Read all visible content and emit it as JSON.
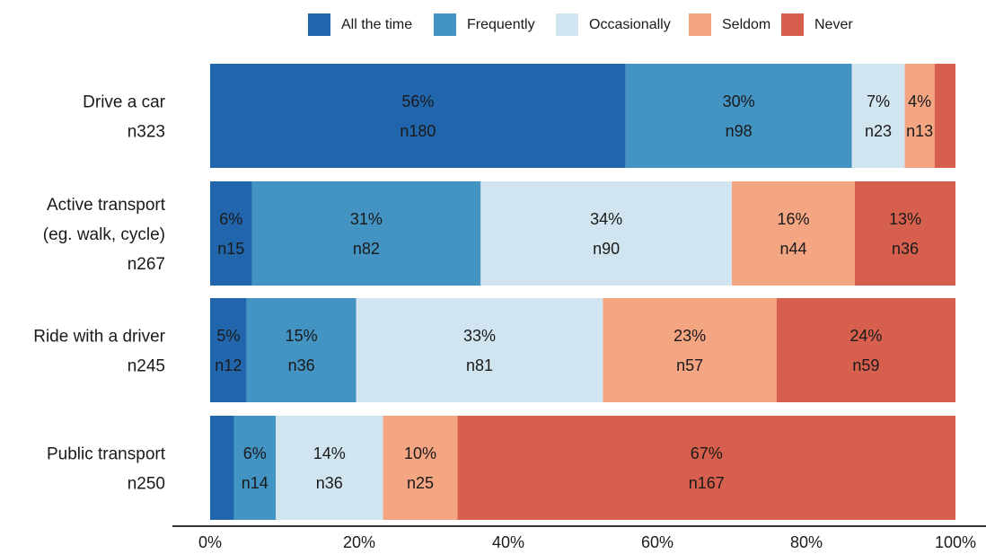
{
  "chart_data": {
    "type": "bar",
    "orientation": "horizontal",
    "stacked": true,
    "normalized": true,
    "legend_position": "top",
    "grid": false,
    "xlim": [
      0,
      100
    ],
    "x_ticks": [
      "0%",
      "20%",
      "40%",
      "60%",
      "80%",
      "100%"
    ],
    "legend": [
      {
        "name": "All the time",
        "color": "#2166ac"
      },
      {
        "name": "Frequently",
        "color": "#4393c3"
      },
      {
        "name": "Occasionally",
        "color": "#d1e5f0"
      },
      {
        "name": "Seldom",
        "color": "#f4a582"
      },
      {
        "name": "Never",
        "color": "#d6604d"
      }
    ],
    "categories": [
      {
        "label_lines": [
          "Drive a car",
          "n323"
        ],
        "segments": [
          {
            "percent": 55.7,
            "pct_label": "56%",
            "n_label": "n180"
          },
          {
            "percent": 30.3,
            "pct_label": "30%",
            "n_label": "n98"
          },
          {
            "percent": 7.1,
            "pct_label": "7%",
            "n_label": "n23"
          },
          {
            "percent": 4.0,
            "pct_label": "4%",
            "n_label": "n13"
          },
          {
            "percent": 2.8,
            "pct_label": "",
            "n_label": ""
          }
        ]
      },
      {
        "label_lines": [
          "Active transport",
          "(eg. walk, cycle)",
          "n267"
        ],
        "segments": [
          {
            "percent": 5.6,
            "pct_label": "6%",
            "n_label": "n15"
          },
          {
            "percent": 30.7,
            "pct_label": "31%",
            "n_label": "n82"
          },
          {
            "percent": 33.7,
            "pct_label": "34%",
            "n_label": "n90"
          },
          {
            "percent": 16.5,
            "pct_label": "16%",
            "n_label": "n44"
          },
          {
            "percent": 13.5,
            "pct_label": "13%",
            "n_label": "n36"
          }
        ]
      },
      {
        "label_lines": [
          "Ride with a driver",
          "n245"
        ],
        "segments": [
          {
            "percent": 4.9,
            "pct_label": "5%",
            "n_label": "n12"
          },
          {
            "percent": 14.7,
            "pct_label": "15%",
            "n_label": "n36"
          },
          {
            "percent": 33.1,
            "pct_label": "33%",
            "n_label": "n81"
          },
          {
            "percent": 23.3,
            "pct_label": "23%",
            "n_label": "n57"
          },
          {
            "percent": 24.0,
            "pct_label": "24%",
            "n_label": "n59"
          }
        ]
      },
      {
        "label_lines": [
          "Public transport",
          "n250"
        ],
        "segments": [
          {
            "percent": 3.2,
            "pct_label": "",
            "n_label": ""
          },
          {
            "percent": 5.6,
            "pct_label": "6%",
            "n_label": "n14"
          },
          {
            "percent": 14.4,
            "pct_label": "14%",
            "n_label": "n36"
          },
          {
            "percent": 10.0,
            "pct_label": "10%",
            "n_label": "n25"
          },
          {
            "percent": 66.8,
            "pct_label": "67%",
            "n_label": "n167"
          }
        ]
      }
    ]
  }
}
